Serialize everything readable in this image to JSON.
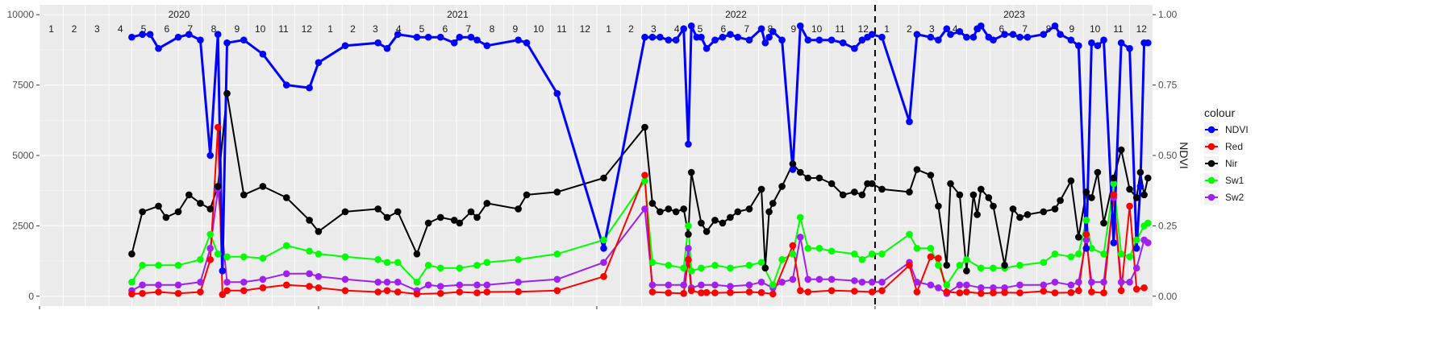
{
  "chart_data": {
    "type": "line",
    "title": "",
    "xlabel": "",
    "ylabel": "",
    "ylabel_right": "NDVI",
    "ylim": [
      -350,
      10350
    ],
    "ylim_right": [
      -0.035,
      1.035
    ],
    "yticks_left": [
      0,
      2500,
      5000,
      7500,
      10000
    ],
    "yticks_right": [
      "0.00",
      "0.25",
      "0.50",
      "0.75",
      "1.00"
    ],
    "xlim": [
      "2020-01-01",
      "2023-12-31"
    ],
    "years": [
      "2020",
      "2021",
      "2022",
      "2023"
    ],
    "months": [
      "1",
      "2",
      "3",
      "4",
      "5",
      "6",
      "7",
      "8",
      "9",
      "10",
      "11",
      "12"
    ],
    "vline": "2023-01-01",
    "grid": true,
    "legend": {
      "title": "colour",
      "placement": "right"
    },
    "series": [
      {
        "name": "NDVI",
        "color": "#0000ff",
        "x": [
          "2020-05-01",
          "2020-05-15",
          "2020-05-25",
          "2020-06-05",
          "2020-07-01",
          "2020-07-15",
          "2020-07-30",
          "2020-08-12",
          "2020-08-22",
          "2020-08-28",
          "2020-09-03",
          "2020-09-25",
          "2020-10-20",
          "2020-11-20",
          "2020-12-20",
          "2021-01-01",
          "2021-02-05",
          "2021-03-20",
          "2021-04-01",
          "2021-04-15",
          "2021-05-10",
          "2021-05-25",
          "2021-06-10",
          "2021-06-28",
          "2021-07-05",
          "2021-07-20",
          "2021-07-28",
          "2021-08-10",
          "2021-09-20",
          "2021-10-01",
          "2021-11-10",
          "2022-01-10",
          "2022-03-05",
          "2022-03-15",
          "2022-03-25",
          "2022-04-05",
          "2022-04-15",
          "2022-04-25",
          "2022-05-01",
          "2022-05-05",
          "2022-05-12",
          "2022-05-18",
          "2022-05-25",
          "2022-06-05",
          "2022-06-15",
          "2022-06-25",
          "2022-07-05",
          "2022-07-20",
          "2022-08-05",
          "2022-08-10",
          "2022-08-15",
          "2022-08-20",
          "2022-09-01",
          "2022-09-15",
          "2022-09-25",
          "2022-10-05",
          "2022-10-20",
          "2022-11-05",
          "2022-11-20",
          "2022-12-05",
          "2022-12-15",
          "2022-12-22",
          "2022-12-28",
          "2023-01-10",
          "2023-02-15",
          "2023-02-25",
          "2023-03-15",
          "2023-03-25",
          "2023-04-05",
          "2023-04-10",
          "2023-04-22",
          "2023-05-01",
          "2023-05-10",
          "2023-05-15",
          "2023-05-20",
          "2023-05-30",
          "2023-06-05",
          "2023-06-20",
          "2023-07-01",
          "2023-07-10",
          "2023-07-20",
          "2023-08-10",
          "2023-08-25",
          "2023-09-01",
          "2023-09-15",
          "2023-09-25",
          "2023-10-05",
          "2023-10-12",
          "2023-10-20",
          "2023-10-28",
          "2023-11-10",
          "2023-11-20",
          "2023-12-01",
          "2023-12-10",
          "2023-12-15",
          "2023-12-20",
          "2023-12-25"
        ],
        "values": [
          9200,
          9300,
          9300,
          8800,
          9200,
          9300,
          9100,
          5000,
          9300,
          900,
          9000,
          9100,
          8600,
          7500,
          7400,
          8300,
          8900,
          9000,
          8800,
          9300,
          9200,
          9200,
          9200,
          9000,
          9200,
          9200,
          9100,
          8900,
          9100,
          9000,
          7200,
          1700,
          9200,
          9200,
          9200,
          9100,
          9100,
          9500,
          5400,
          9600,
          9200,
          9200,
          8800,
          9100,
          9200,
          9300,
          9200,
          9100,
          9500,
          9000,
          9200,
          9400,
          9100,
          4500,
          9600,
          9100,
          9100,
          9100,
          9000,
          8800,
          9100,
          9200,
          9300,
          9200,
          6200,
          9300,
          9200,
          9100,
          9500,
          9300,
          9400,
          9200,
          9200,
          9500,
          9600,
          9200,
          9100,
          9300,
          9300,
          9200,
          9200,
          9300,
          9600,
          9300,
          9100,
          8900,
          1700,
          9000,
          8900,
          9100,
          1900,
          9000,
          8800,
          1700,
          3900,
          9000,
          9000
        ]
      },
      {
        "name": "Red",
        "color": "#ff0000",
        "x": [
          "2020-05-01",
          "2020-05-15",
          "2020-06-05",
          "2020-07-01",
          "2020-07-30",
          "2020-08-12",
          "2020-08-22",
          "2020-08-28",
          "2020-09-03",
          "2020-09-25",
          "2020-10-20",
          "2020-11-20",
          "2020-12-20",
          "2021-01-01",
          "2021-02-05",
          "2021-03-20",
          "2021-04-01",
          "2021-04-15",
          "2021-05-10",
          "2021-06-10",
          "2021-07-05",
          "2021-07-28",
          "2021-08-10",
          "2021-09-20",
          "2021-11-10",
          "2022-01-10",
          "2022-03-05",
          "2022-03-15",
          "2022-04-05",
          "2022-04-25",
          "2022-05-01",
          "2022-05-05",
          "2022-05-18",
          "2022-05-25",
          "2022-06-05",
          "2022-06-25",
          "2022-07-20",
          "2022-08-05",
          "2022-08-20",
          "2022-09-15",
          "2022-09-25",
          "2022-10-05",
          "2022-11-05",
          "2022-12-05",
          "2022-12-28",
          "2023-01-10",
          "2023-02-15",
          "2023-02-25",
          "2023-03-15",
          "2023-03-25",
          "2023-04-05",
          "2023-04-22",
          "2023-05-01",
          "2023-05-20",
          "2023-06-05",
          "2023-06-20",
          "2023-07-10",
          "2023-08-10",
          "2023-08-25",
          "2023-09-15",
          "2023-09-25",
          "2023-10-05",
          "2023-10-12",
          "2023-10-28",
          "2023-11-10",
          "2023-11-20",
          "2023-12-01",
          "2023-12-10",
          "2023-12-20"
        ],
        "values": [
          80,
          100,
          150,
          100,
          150,
          1300,
          6000,
          60,
          200,
          200,
          300,
          400,
          350,
          300,
          200,
          150,
          200,
          150,
          80,
          100,
          150,
          120,
          150,
          160,
          200,
          700,
          4300,
          150,
          120,
          100,
          1300,
          200,
          120,
          130,
          120,
          130,
          150,
          130,
          80,
          1800,
          200,
          150,
          200,
          180,
          150,
          200,
          1100,
          150,
          1400,
          1350,
          150,
          120,
          150,
          100,
          120,
          130,
          120,
          180,
          120,
          130,
          200,
          2200,
          150,
          120,
          3600,
          200,
          3200,
          250,
          300
        ]
      },
      {
        "name": "Nir",
        "color": "#000000",
        "x": [
          "2020-05-01",
          "2020-05-15",
          "2020-06-05",
          "2020-06-15",
          "2020-07-01",
          "2020-07-15",
          "2020-07-30",
          "2020-08-12",
          "2020-08-22",
          "2020-09-03",
          "2020-09-25",
          "2020-10-20",
          "2020-11-20",
          "2020-12-20",
          "2021-01-01",
          "2021-02-05",
          "2021-03-20",
          "2021-04-01",
          "2021-04-15",
          "2021-05-10",
          "2021-05-25",
          "2021-06-10",
          "2021-06-28",
          "2021-07-05",
          "2021-07-20",
          "2021-07-28",
          "2021-08-10",
          "2021-09-20",
          "2021-10-01",
          "2021-11-10",
          "2022-01-10",
          "2022-03-05",
          "2022-03-15",
          "2022-03-25",
          "2022-04-05",
          "2022-04-15",
          "2022-04-25",
          "2022-05-01",
          "2022-05-05",
          "2022-05-18",
          "2022-05-25",
          "2022-06-05",
          "2022-06-15",
          "2022-06-25",
          "2022-07-05",
          "2022-07-20",
          "2022-08-05",
          "2022-08-10",
          "2022-08-15",
          "2022-08-20",
          "2022-09-01",
          "2022-09-15",
          "2022-09-25",
          "2022-10-05",
          "2022-10-20",
          "2022-11-05",
          "2022-11-20",
          "2022-12-05",
          "2022-12-15",
          "2022-12-22",
          "2022-12-28",
          "2023-01-10",
          "2023-02-15",
          "2023-02-25",
          "2023-03-15",
          "2023-03-25",
          "2023-04-05",
          "2023-04-10",
          "2023-04-22",
          "2023-05-01",
          "2023-05-10",
          "2023-05-15",
          "2023-05-20",
          "2023-05-30",
          "2023-06-05",
          "2023-06-20",
          "2023-07-01",
          "2023-07-10",
          "2023-07-20",
          "2023-08-10",
          "2023-08-25",
          "2023-09-01",
          "2023-09-15",
          "2023-09-25",
          "2023-10-05",
          "2023-10-12",
          "2023-10-20",
          "2023-10-28",
          "2023-11-10",
          "2023-11-20",
          "2023-12-01",
          "2023-12-10",
          "2023-12-15",
          "2023-12-20",
          "2023-12-25"
        ],
        "values": [
          1500,
          3000,
          3200,
          2800,
          3000,
          3600,
          3300,
          3100,
          3900,
          7200,
          3600,
          3900,
          3500,
          2700,
          2300,
          3000,
          3100,
          2800,
          3000,
          1500,
          2600,
          2800,
          2700,
          2600,
          3000,
          2800,
          3300,
          3100,
          3600,
          3700,
          4200,
          6000,
          3300,
          3000,
          3100,
          3000,
          3100,
          2200,
          4400,
          2600,
          2300,
          2700,
          2600,
          2800,
          3000,
          3100,
          3800,
          1000,
          3000,
          3300,
          3900,
          4700,
          4400,
          4200,
          4200,
          4000,
          3600,
          3700,
          3600,
          4000,
          4000,
          3800,
          3700,
          4500,
          4300,
          3200,
          1100,
          4000,
          3600,
          900,
          3600,
          2900,
          3800,
          3500,
          3200,
          1100,
          3100,
          2800,
          2900,
          3000,
          3100,
          3400,
          4100,
          2100,
          3700,
          3500,
          4400,
          2600,
          4200,
          5200,
          3800,
          3500,
          4400,
          3600,
          4200
        ]
      },
      {
        "name": "Sw1",
        "color": "#00ff00",
        "x": [
          "2020-05-01",
          "2020-05-15",
          "2020-06-05",
          "2020-07-01",
          "2020-07-30",
          "2020-08-12",
          "2020-08-22",
          "2020-09-03",
          "2020-09-25",
          "2020-10-20",
          "2020-11-20",
          "2020-12-20",
          "2021-01-01",
          "2021-02-05",
          "2021-03-20",
          "2021-04-01",
          "2021-04-15",
          "2021-05-10",
          "2021-05-25",
          "2021-06-10",
          "2021-07-05",
          "2021-07-28",
          "2021-08-10",
          "2021-09-20",
          "2021-11-10",
          "2022-01-10",
          "2022-03-05",
          "2022-03-15",
          "2022-04-05",
          "2022-04-25",
          "2022-05-01",
          "2022-05-05",
          "2022-05-18",
          "2022-06-05",
          "2022-06-25",
          "2022-07-20",
          "2022-08-05",
          "2022-08-20",
          "2022-09-01",
          "2022-09-15",
          "2022-09-25",
          "2022-10-05",
          "2022-10-20",
          "2022-11-05",
          "2022-12-05",
          "2022-12-15",
          "2022-12-28",
          "2023-01-10",
          "2023-02-15",
          "2023-02-25",
          "2023-03-15",
          "2023-03-25",
          "2023-04-05",
          "2023-04-22",
          "2023-05-01",
          "2023-05-20",
          "2023-06-05",
          "2023-06-20",
          "2023-07-10",
          "2023-08-10",
          "2023-08-25",
          "2023-09-15",
          "2023-09-25",
          "2023-10-05",
          "2023-10-12",
          "2023-10-28",
          "2023-11-10",
          "2023-11-20",
          "2023-12-01",
          "2023-12-10",
          "2023-12-20",
          "2023-12-25"
        ],
        "values": [
          500,
          1100,
          1100,
          1100,
          1300,
          2200,
          1500,
          1400,
          1400,
          1350,
          1800,
          1600,
          1500,
          1400,
          1300,
          1200,
          1200,
          500,
          1100,
          1000,
          1000,
          1100,
          1200,
          1300,
          1500,
          2000,
          4100,
          1200,
          1100,
          1000,
          2500,
          900,
          1000,
          1100,
          1000,
          1100,
          1200,
          400,
          1300,
          1500,
          2800,
          1700,
          1700,
          1600,
          1500,
          1300,
          1500,
          1500,
          2200,
          1700,
          1700,
          1100,
          400,
          1100,
          1300,
          1000,
          1000,
          1000,
          1100,
          1200,
          1500,
          1400,
          1500,
          2700,
          1700,
          1500,
          4000,
          1500,
          1400,
          2000,
          2500,
          2600
        ]
      },
      {
        "name": "Sw2",
        "color": "#a020f0",
        "x": [
          "2020-05-01",
          "2020-05-15",
          "2020-06-05",
          "2020-07-01",
          "2020-07-30",
          "2020-08-12",
          "2020-08-22",
          "2020-09-03",
          "2020-09-25",
          "2020-10-20",
          "2020-11-20",
          "2020-12-20",
          "2021-01-01",
          "2021-02-05",
          "2021-03-20",
          "2021-04-01",
          "2021-04-15",
          "2021-05-10",
          "2021-05-25",
          "2021-06-10",
          "2021-07-05",
          "2021-07-28",
          "2021-08-10",
          "2021-09-20",
          "2021-11-10",
          "2022-01-10",
          "2022-03-05",
          "2022-03-15",
          "2022-04-05",
          "2022-04-25",
          "2022-05-01",
          "2022-05-05",
          "2022-05-18",
          "2022-06-05",
          "2022-06-25",
          "2022-07-20",
          "2022-08-05",
          "2022-08-20",
          "2022-09-01",
          "2022-09-15",
          "2022-09-25",
          "2022-10-05",
          "2022-10-20",
          "2022-11-05",
          "2022-12-05",
          "2022-12-15",
          "2022-12-28",
          "2023-01-10",
          "2023-02-15",
          "2023-02-25",
          "2023-03-15",
          "2023-03-25",
          "2023-04-05",
          "2023-04-22",
          "2023-05-01",
          "2023-05-20",
          "2023-06-05",
          "2023-06-20",
          "2023-07-10",
          "2023-08-10",
          "2023-08-25",
          "2023-09-15",
          "2023-09-25",
          "2023-10-05",
          "2023-10-12",
          "2023-10-28",
          "2023-11-10",
          "2023-11-20",
          "2023-12-01",
          "2023-12-10",
          "2023-12-20",
          "2023-12-25"
        ],
        "values": [
          200,
          400,
          400,
          400,
          500,
          1700,
          3800,
          500,
          500,
          600,
          800,
          800,
          700,
          600,
          500,
          500,
          500,
          200,
          400,
          350,
          400,
          400,
          400,
          500,
          600,
          1200,
          3100,
          400,
          400,
          400,
          1700,
          300,
          400,
          400,
          350,
          400,
          500,
          300,
          500,
          600,
          2100,
          600,
          600,
          600,
          550,
          500,
          500,
          500,
          1200,
          500,
          400,
          300,
          100,
          400,
          400,
          300,
          300,
          300,
          400,
          400,
          500,
          400,
          500,
          2000,
          500,
          500,
          3500,
          500,
          500,
          1000,
          2000,
          1900
        ]
      }
    ]
  }
}
